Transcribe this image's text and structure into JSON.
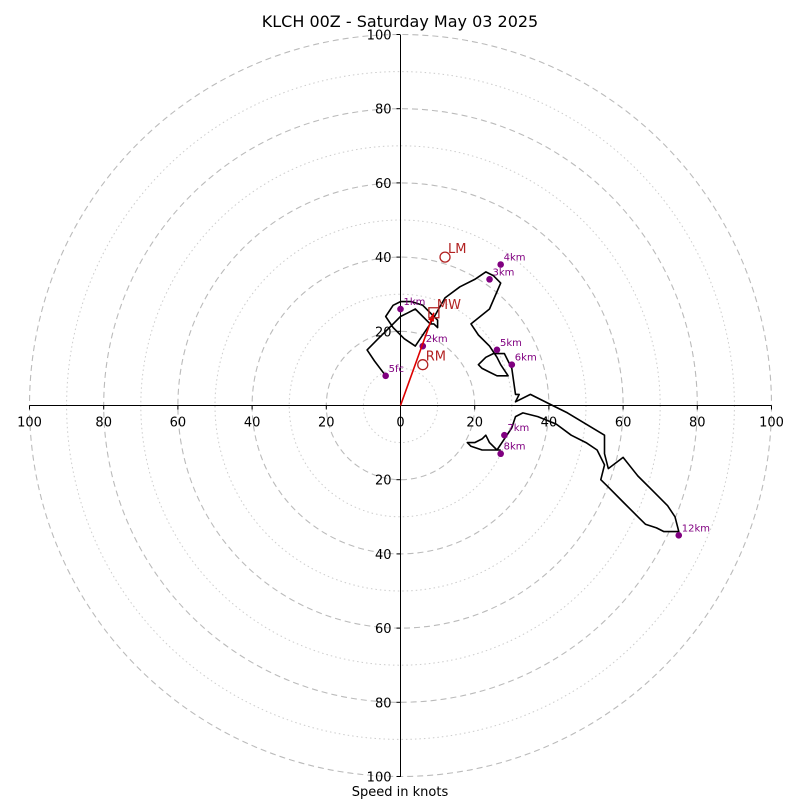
{
  "chart_data": {
    "type": "line",
    "title": "KLCH 00Z - Saturday May 03 2025",
    "xlabel": "Speed in knots",
    "ylabel": "",
    "xlim": [
      -100,
      100
    ],
    "ylim": [
      -100,
      100
    ],
    "x_ticks": [
      "100",
      "80",
      "60",
      "40",
      "20",
      "0",
      "20",
      "40",
      "60",
      "80",
      "100"
    ],
    "y_ticks": [
      "100",
      "80",
      "60",
      "40",
      "20",
      "20",
      "40",
      "60",
      "80",
      "100"
    ],
    "rings": [
      20,
      40,
      60,
      80,
      100
    ],
    "minor_rings": [
      10,
      30,
      50,
      70,
      90
    ],
    "grid": true,
    "colors": {
      "hodograph": "#000000",
      "height_marker": "#800080",
      "storm_motion": "#b22222",
      "shear_vector": "#dd0000",
      "grid_major": "#bbbbbb",
      "grid_minor": "#cccccc"
    },
    "series": [
      {
        "name": "",
        "x": [
          -4,
          -7,
          -9,
          -6,
          -4,
          -2,
          0,
          2,
          4,
          6,
          8,
          9,
          10,
          10,
          8,
          6,
          3,
          0,
          -2,
          -4,
          -2,
          1,
          4,
          8,
          12,
          16,
          20,
          23,
          25,
          27,
          24,
          19,
          21,
          24,
          26,
          27,
          29,
          26,
          24,
          22,
          21,
          23,
          25,
          28,
          30,
          31,
          32,
          31,
          35,
          41,
          45,
          50,
          55,
          55,
          56,
          60,
          64,
          68,
          72,
          74,
          75,
          71,
          69,
          66,
          64,
          60,
          56,
          54,
          55,
          53,
          50,
          46,
          42,
          37,
          33,
          31,
          30,
          28,
          26,
          24,
          23,
          22,
          20,
          18,
          19,
          22,
          25,
          27
        ],
        "y": [
          8,
          12,
          15,
          18,
          20,
          22,
          24,
          25,
          26,
          24,
          22,
          22,
          21,
          23,
          25,
          27,
          28,
          28,
          27,
          24,
          21,
          18,
          16,
          22,
          29,
          32,
          34,
          36,
          35,
          33,
          26,
          22,
          19,
          16,
          13,
          11,
          8,
          8,
          9,
          10,
          11,
          13,
          14,
          14,
          10,
          3,
          3,
          1,
          3,
          0,
          -2,
          -5,
          -8,
          -13,
          -17,
          -14,
          -19,
          -23,
          -27,
          -30,
          -34,
          -34,
          -33,
          -32,
          -30,
          -26,
          -22,
          -20,
          -16,
          -12,
          -10,
          -8,
          -5,
          -3,
          -2,
          -3,
          -6,
          -9,
          -12,
          -10,
          -8,
          -9,
          -10,
          -10,
          -11,
          -12,
          -12,
          -12
        ]
      }
    ],
    "height_markers": [
      {
        "label": "5fc",
        "u": -4,
        "v": 8
      },
      {
        "label": "1km",
        "u": 0,
        "v": 26
      },
      {
        "label": "2km",
        "u": 6,
        "v": 16
      },
      {
        "label": "3km",
        "u": 24,
        "v": 34
      },
      {
        "label": "4km",
        "u": 27,
        "v": 38
      },
      {
        "label": "5km",
        "u": 26,
        "v": 15
      },
      {
        "label": "6km",
        "u": 30,
        "v": 11
      },
      {
        "label": "7km",
        "u": 28,
        "v": -8
      },
      {
        "label": "8km",
        "u": 27,
        "v": -13
      },
      {
        "label": "12km",
        "u": 75,
        "v": -35
      }
    ],
    "storm_motion": [
      {
        "label": "LM",
        "u": 12,
        "v": 40,
        "marker": "circle"
      },
      {
        "label": "MW",
        "u": 9,
        "v": 25,
        "marker": "square"
      },
      {
        "label": "RM",
        "u": 6,
        "v": 11,
        "marker": "circle"
      }
    ],
    "shear_vector": {
      "from": [
        0,
        0
      ],
      "to": [
        9,
        25
      ]
    }
  }
}
